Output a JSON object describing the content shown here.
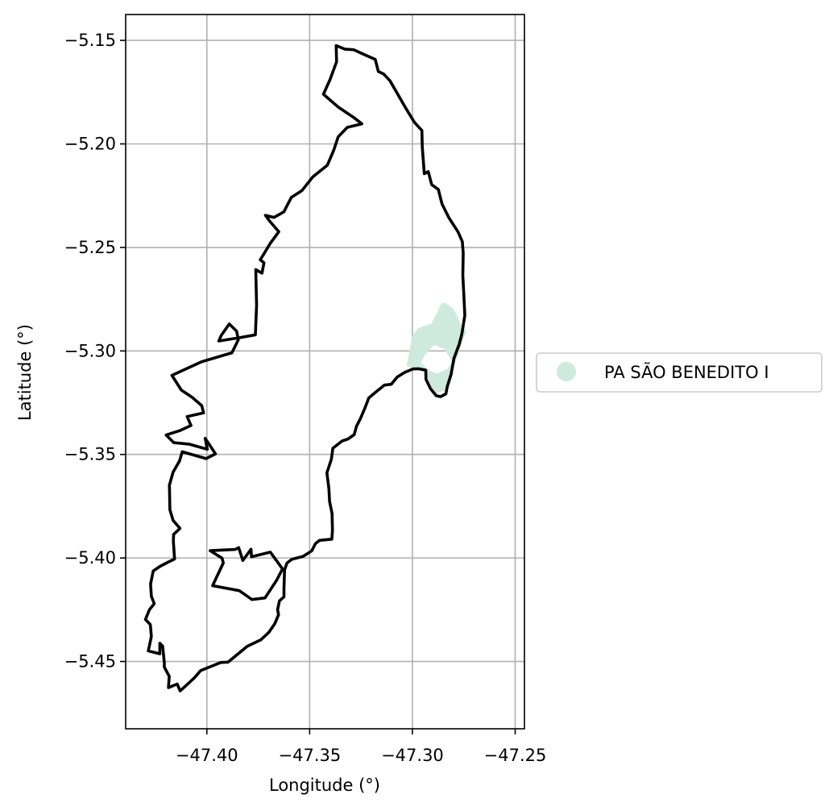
{
  "chart_data": {
    "type": "map",
    "xlabel": "Longitude (°)",
    "ylabel": "Latitude (°)",
    "xlim": [
      -47.4395,
      -47.2455
    ],
    "ylim": [
      -5.4825,
      -5.1375
    ],
    "grid": true,
    "x_ticks": [
      {
        "value": -47.4,
        "label": "−47.40"
      },
      {
        "value": -47.35,
        "label": "−47.35"
      },
      {
        "value": -47.3,
        "label": "−47.30"
      },
      {
        "value": -47.25,
        "label": "−47.25"
      }
    ],
    "y_ticks": [
      {
        "value": -5.15,
        "label": "−5.15"
      },
      {
        "value": -5.2,
        "label": "−5.20"
      },
      {
        "value": -5.25,
        "label": "−5.25"
      },
      {
        "value": -5.3,
        "label": "−5.30"
      },
      {
        "value": -5.35,
        "label": "−5.35"
      },
      {
        "value": -5.4,
        "label": "−5.40"
      },
      {
        "value": -5.45,
        "label": "−5.45"
      }
    ],
    "legend": {
      "placement": "right-center",
      "entries": [
        {
          "label": "PA SÃO BENEDITO I",
          "color": "#ceeadc"
        }
      ]
    },
    "boundary": {
      "stroke": "#000000",
      "points": [
        [
          -47.3371,
          -5.1525
        ],
        [
          -47.3329,
          -5.1542
        ],
        [
          -47.3285,
          -5.1545
        ],
        [
          -47.3235,
          -5.1568
        ],
        [
          -47.3181,
          -5.1592
        ],
        [
          -47.3166,
          -5.165
        ],
        [
          -47.314,
          -5.1662
        ],
        [
          -47.3109,
          -5.1695
        ],
        [
          -47.3033,
          -5.1826
        ],
        [
          -47.299,
          -5.1896
        ],
        [
          -47.2954,
          -5.1935
        ],
        [
          -47.2952,
          -5.2015
        ],
        [
          -47.2942,
          -5.2144
        ],
        [
          -47.2923,
          -5.2134
        ],
        [
          -47.2906,
          -5.2197
        ],
        [
          -47.2874,
          -5.222
        ],
        [
          -47.2856,
          -5.229
        ],
        [
          -47.2822,
          -5.2358
        ],
        [
          -47.2778,
          -5.2425
        ],
        [
          -47.2757,
          -5.2472
        ],
        [
          -47.2753,
          -5.2528
        ],
        [
          -47.2755,
          -5.2636
        ],
        [
          -47.275,
          -5.2723
        ],
        [
          -47.2745,
          -5.2828
        ],
        [
          -47.2759,
          -5.2917
        ],
        [
          -47.2773,
          -5.2969
        ],
        [
          -47.2798,
          -5.3036
        ],
        [
          -47.2812,
          -5.3114
        ],
        [
          -47.283,
          -5.3171
        ],
        [
          -47.2837,
          -5.3207
        ],
        [
          -47.2863,
          -5.3221
        ],
        [
          -47.2884,
          -5.3216
        ],
        [
          -47.2912,
          -5.3182
        ],
        [
          -47.2934,
          -5.3137
        ],
        [
          -47.2935,
          -5.3093
        ],
        [
          -47.2971,
          -5.3086
        ],
        [
          -47.2998,
          -5.3087
        ],
        [
          -47.3038,
          -5.3104
        ],
        [
          -47.3074,
          -5.3126
        ],
        [
          -47.3103,
          -5.3161
        ],
        [
          -47.3136,
          -5.3165
        ],
        [
          -47.3181,
          -5.3201
        ],
        [
          -47.3212,
          -5.3227
        ],
        [
          -47.3229,
          -5.3271
        ],
        [
          -47.3252,
          -5.3325
        ],
        [
          -47.3272,
          -5.3364
        ],
        [
          -47.3283,
          -5.3404
        ],
        [
          -47.3313,
          -5.3425
        ],
        [
          -47.3342,
          -5.3435
        ],
        [
          -47.3387,
          -5.347
        ],
        [
          -47.3394,
          -5.3522
        ],
        [
          -47.3416,
          -5.3589
        ],
        [
          -47.3406,
          -5.3666
        ],
        [
          -47.3403,
          -5.3727
        ],
        [
          -47.3391,
          -5.3785
        ],
        [
          -47.3389,
          -5.3868
        ],
        [
          -47.3392,
          -5.3909
        ],
        [
          -47.3452,
          -5.3915
        ],
        [
          -47.3472,
          -5.3931
        ],
        [
          -47.349,
          -5.3966
        ],
        [
          -47.3533,
          -5.3993
        ],
        [
          -47.3586,
          -5.4006
        ],
        [
          -47.361,
          -5.4024
        ],
        [
          -47.3622,
          -5.4058
        ],
        [
          -47.3625,
          -5.4149
        ],
        [
          -47.3625,
          -5.4188
        ],
        [
          -47.3647,
          -5.4207
        ],
        [
          -47.3656,
          -5.425
        ],
        [
          -47.3651,
          -5.4274
        ],
        [
          -47.3669,
          -5.4317
        ],
        [
          -47.3698,
          -5.4359
        ],
        [
          -47.3738,
          -5.4396
        ],
        [
          -47.3804,
          -5.4427
        ],
        [
          -47.3859,
          -5.4472
        ],
        [
          -47.3897,
          -5.4503
        ],
        [
          -47.3933,
          -5.4505
        ],
        [
          -47.3993,
          -5.4529
        ],
        [
          -47.403,
          -5.4544
        ],
        [
          -47.4062,
          -5.458
        ],
        [
          -47.4104,
          -5.4619
        ],
        [
          -47.413,
          -5.4642
        ],
        [
          -47.4144,
          -5.4609
        ],
        [
          -47.4187,
          -5.4626
        ],
        [
          -47.4183,
          -5.4572
        ],
        [
          -47.4207,
          -5.4527
        ],
        [
          -47.4207,
          -5.4506
        ],
        [
          -47.4215,
          -5.4426
        ],
        [
          -47.4229,
          -5.4412
        ],
        [
          -47.4229,
          -5.4463
        ],
        [
          -47.4285,
          -5.4449
        ],
        [
          -47.427,
          -5.4379
        ],
        [
          -47.4275,
          -5.4322
        ],
        [
          -47.4299,
          -5.4297
        ],
        [
          -47.4279,
          -5.4249
        ],
        [
          -47.4256,
          -5.4221
        ],
        [
          -47.427,
          -5.4185
        ],
        [
          -47.4274,
          -5.4126
        ],
        [
          -47.4261,
          -5.4063
        ],
        [
          -47.4227,
          -5.404
        ],
        [
          -47.419,
          -5.4021
        ],
        [
          -47.4157,
          -5.4005
        ],
        [
          -47.4163,
          -5.392
        ],
        [
          -47.4162,
          -5.3886
        ],
        [
          -47.4131,
          -5.3857
        ],
        [
          -47.4164,
          -5.3819
        ],
        [
          -47.418,
          -5.3767
        ],
        [
          -47.4182,
          -5.3648
        ],
        [
          -47.4164,
          -5.3585
        ],
        [
          -47.4133,
          -5.3531
        ],
        [
          -47.412,
          -5.3487
        ],
        [
          -47.4004,
          -5.352
        ],
        [
          -47.3958,
          -5.3497
        ],
        [
          -47.4008,
          -5.3422
        ],
        [
          -47.3998,
          -5.3475
        ],
        [
          -47.4087,
          -5.345
        ],
        [
          -47.4161,
          -5.3443
        ],
        [
          -47.4198,
          -5.3406
        ],
        [
          -47.4129,
          -5.3384
        ],
        [
          -47.4077,
          -5.336
        ],
        [
          -47.4096,
          -5.3317
        ],
        [
          -47.4016,
          -5.3299
        ],
        [
          -47.4025,
          -5.3264
        ],
        [
          -47.4072,
          -5.3224
        ],
        [
          -47.4124,
          -5.3189
        ],
        [
          -47.417,
          -5.3118
        ],
        [
          -47.4027,
          -5.3053
        ],
        [
          -47.3878,
          -5.3009
        ],
        [
          -47.3847,
          -5.2946
        ],
        [
          -47.3855,
          -5.2905
        ],
        [
          -47.3891,
          -5.287
        ],
        [
          -47.393,
          -5.2925
        ],
        [
          -47.3942,
          -5.2952
        ],
        [
          -47.3841,
          -5.2936
        ],
        [
          -47.3764,
          -5.2922
        ],
        [
          -47.3758,
          -5.2779
        ],
        [
          -47.3762,
          -5.2607
        ],
        [
          -47.3732,
          -5.2624
        ],
        [
          -47.3722,
          -5.2574
        ],
        [
          -47.374,
          -5.256
        ],
        [
          -47.3692,
          -5.2481
        ],
        [
          -47.365,
          -5.2424
        ],
        [
          -47.3697,
          -5.237
        ],
        [
          -47.3715,
          -5.2345
        ],
        [
          -47.3673,
          -5.2355
        ],
        [
          -47.3625,
          -5.2328
        ],
        [
          -47.3612,
          -5.2302
        ],
        [
          -47.3589,
          -5.2258
        ],
        [
          -47.3538,
          -5.2226
        ],
        [
          -47.3484,
          -5.2159
        ],
        [
          -47.3414,
          -5.2103
        ],
        [
          -47.3383,
          -5.2031
        ],
        [
          -47.3361,
          -5.1966
        ],
        [
          -47.3317,
          -5.192
        ],
        [
          -47.3246,
          -5.1903
        ],
        [
          -47.3282,
          -5.1875
        ],
        [
          -47.3361,
          -5.1822
        ],
        [
          -47.3433,
          -5.176
        ],
        [
          -47.3401,
          -5.169
        ],
        [
          -47.3369,
          -5.1603
        ],
        [
          -47.3371,
          -5.1525
        ]
      ],
      "inner_ring": [
        [
          -47.3862,
          -5.3959
        ],
        [
          -47.3845,
          -5.395
        ],
        [
          -47.3825,
          -5.4012
        ],
        [
          -47.3785,
          -5.3958
        ],
        [
          -47.3783,
          -5.3994
        ],
        [
          -47.3691,
          -5.3972
        ],
        [
          -47.3632,
          -5.4053
        ],
        [
          -47.366,
          -5.4107
        ],
        [
          -47.3717,
          -5.4193
        ],
        [
          -47.3781,
          -5.4201
        ],
        [
          -47.3842,
          -5.4158
        ],
        [
          -47.3972,
          -5.4134
        ],
        [
          -47.392,
          -5.4024
        ],
        [
          -47.3926,
          -5.4001
        ],
        [
          -47.3984,
          -5.3965
        ],
        [
          -47.3862,
          -5.3959
        ]
      ]
    },
    "settlement_polygon": {
      "name": "PA SÃO BENEDITO I",
      "fill": "#ceeadc",
      "points": [
        [
          -47.2838,
          -5.277
        ],
        [
          -47.2802,
          -5.2795
        ],
        [
          -47.2786,
          -5.2824
        ],
        [
          -47.2762,
          -5.2879
        ],
        [
          -47.2738,
          -5.2904
        ],
        [
          -47.2765,
          -5.2984
        ],
        [
          -47.2838,
          -5.3188
        ],
        [
          -47.2886,
          -5.3205
        ],
        [
          -47.2914,
          -5.3167
        ],
        [
          -47.2936,
          -5.3095
        ],
        [
          -47.2953,
          -5.3081
        ],
        [
          -47.2985,
          -5.3089
        ],
        [
          -47.3028,
          -5.3071
        ],
        [
          -47.3011,
          -5.2983
        ],
        [
          -47.3002,
          -5.293
        ],
        [
          -47.2973,
          -5.2891
        ],
        [
          -47.2907,
          -5.2867
        ],
        [
          -47.2858,
          -5.2769
        ],
        [
          -47.2838,
          -5.277
        ]
      ],
      "hole": [
        [
          -47.2808,
          -5.3051
        ],
        [
          -47.2843,
          -5.2991
        ],
        [
          -47.2893,
          -5.297
        ],
        [
          -47.2939,
          -5.3019
        ],
        [
          -47.2959,
          -5.3057
        ],
        [
          -47.2925,
          -5.309
        ],
        [
          -47.2881,
          -5.311
        ],
        [
          -47.2828,
          -5.3086
        ],
        [
          -47.2808,
          -5.3051
        ]
      ]
    }
  }
}
